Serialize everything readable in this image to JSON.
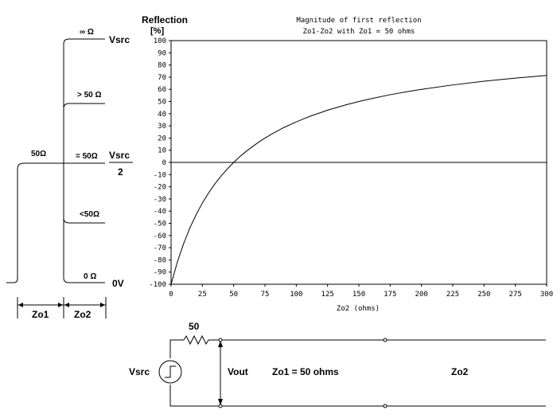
{
  "waveform": {
    "impedance_labels": {
      "infinite": "∞ Ω",
      "greater": "> 50 Ω",
      "equal": "= 50Ω",
      "less": "<50Ω",
      "zero": "0 Ω",
      "source": "50Ω"
    },
    "voltage_labels": {
      "vsrc": "Vsrc",
      "half_numerator": "Vsrc",
      "half_denominator": "2",
      "zero": "0V"
    },
    "segment_labels": {
      "zo1": "Zo1",
      "zo2": "Zo2"
    }
  },
  "chart_data": {
    "type": "line",
    "title": "Magnitude of first reflection",
    "subtitle": "Zo1-Zo2 with Zo1 = 50 ohms",
    "ylabel": "Reflection",
    "yunit": "[%]",
    "xlabel": "Zo2 (ohms)",
    "xlim": [
      0,
      300
    ],
    "ylim": [
      -100,
      100
    ],
    "xticks": [
      "0",
      "25",
      "50",
      "75",
      "100",
      "125",
      "150",
      "175",
      "200",
      "225",
      "250",
      "275",
      "300"
    ],
    "yticks": [
      "100",
      "90",
      "80",
      "70",
      "60",
      "50",
      "40",
      "30",
      "20",
      "10",
      "0",
      "-10",
      "-20",
      "-30",
      "-40",
      "-50",
      "-60",
      "-70",
      "-80",
      "-90",
      "-100"
    ],
    "grid": false,
    "series": [
      {
        "x": [
          0,
          5,
          10,
          15,
          20,
          25,
          30,
          35,
          40,
          45,
          50,
          55,
          60,
          70,
          75,
          80,
          90,
          100,
          110,
          125,
          140,
          150,
          160,
          175,
          190,
          200,
          225,
          250,
          275,
          300
        ],
        "values": [
          -100,
          -81.8,
          -66.7,
          -53.8,
          -42.9,
          -33.3,
          -25,
          -17.6,
          -11.1,
          -5.3,
          0,
          4.8,
          9.1,
          16.7,
          20,
          23.1,
          28.6,
          33.3,
          37.5,
          42.9,
          47.4,
          50,
          52.4,
          55.6,
          58.3,
          60,
          63.6,
          66.7,
          69.2,
          71.4
        ]
      }
    ]
  },
  "circuit": {
    "source_label": "Vsrc",
    "resistor_label": "50",
    "vout_label": "Vout",
    "line1_label": "Zo1 = 50 ohms",
    "line2_label": "Zo2"
  }
}
